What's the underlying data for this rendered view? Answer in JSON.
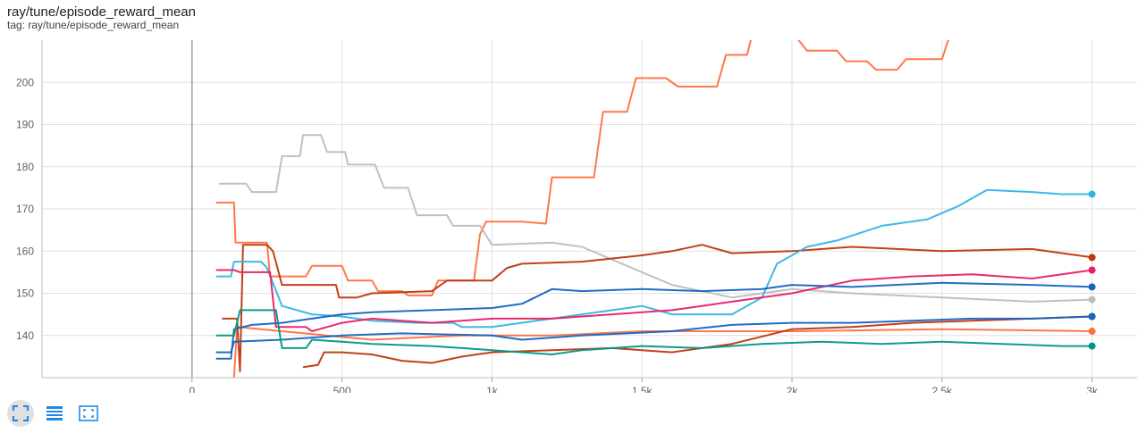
{
  "header": {
    "title": "ray/tune/episode_reward_mean",
    "subtitle": "tag: ray/tune/episode_reward_mean"
  },
  "toolbar": {
    "buttons": [
      {
        "icon": "fit-to-data-icon",
        "active": true
      },
      {
        "icon": "log-scale-toggle-icon",
        "active": false
      },
      {
        "icon": "expand-icon",
        "active": false
      }
    ]
  },
  "chart_data": {
    "type": "line",
    "title": "ray/tune/episode_reward_mean",
    "xlabel": "",
    "ylabel": "",
    "xlim": [
      -500,
      3150
    ],
    "ylim": [
      130,
      210
    ],
    "x_ticks": [
      0,
      500,
      1000,
      1500,
      2000,
      2500,
      3000
    ],
    "x_tick_labels": [
      "0",
      "500",
      "1k",
      "1.5k",
      "2k",
      "2.5k",
      "3k"
    ],
    "y_ticks": [
      140,
      150,
      160,
      170,
      180,
      190,
      200
    ],
    "y_tick_labels": [
      "140",
      "150",
      "160",
      "170",
      "180",
      "190",
      "200"
    ],
    "grid": true,
    "legend": "none",
    "series": [
      {
        "color": "#ff7043",
        "points": [
          [
            140,
            130
          ],
          [
            150,
            142
          ],
          [
            300,
            141
          ],
          [
            450,
            140
          ],
          [
            600,
            139
          ],
          [
            900,
            140
          ],
          [
            1200,
            140
          ],
          [
            1500,
            141
          ],
          [
            2000,
            141
          ],
          [
            2500,
            141.5
          ],
          [
            3000,
            141
          ]
        ]
      },
      {
        "color": "#ff7043",
        "points": [
          [
            80,
            171.5
          ],
          [
            140,
            171.5
          ],
          [
            145,
            162
          ],
          [
            250,
            162
          ],
          [
            260,
            154
          ],
          [
            380,
            154
          ],
          [
            400,
            156.5
          ],
          [
            500,
            156.5
          ],
          [
            520,
            153
          ],
          [
            600,
            153
          ],
          [
            620,
            150.5
          ],
          [
            700,
            150.5
          ],
          [
            720,
            149.5
          ],
          [
            800,
            149.5
          ],
          [
            820,
            153
          ],
          [
            940,
            153
          ],
          [
            960,
            164
          ],
          [
            980,
            167
          ],
          [
            1100,
            167
          ],
          [
            1180,
            166.5
          ],
          [
            1200,
            177.5
          ],
          [
            1340,
            177.5
          ],
          [
            1370,
            193
          ],
          [
            1450,
            193
          ],
          [
            1480,
            201
          ],
          [
            1580,
            201
          ],
          [
            1620,
            199
          ],
          [
            1750,
            199
          ],
          [
            1780,
            206.5
          ],
          [
            1850,
            206.5
          ],
          [
            1870,
            212
          ],
          [
            2000,
            212
          ],
          [
            2050,
            207.5
          ],
          [
            2150,
            207.5
          ],
          [
            2180,
            205
          ],
          [
            2250,
            205
          ],
          [
            2280,
            203
          ],
          [
            2350,
            203
          ],
          [
            2380,
            205.5
          ],
          [
            2500,
            205.5
          ],
          [
            2530,
            212
          ],
          [
            3000,
            212
          ]
        ]
      },
      {
        "color": "#bdbdbd",
        "points": [
          [
            90,
            176
          ],
          [
            180,
            176
          ],
          [
            200,
            174
          ],
          [
            280,
            174
          ],
          [
            300,
            182.5
          ],
          [
            360,
            182.5
          ],
          [
            370,
            187.5
          ],
          [
            430,
            187.5
          ],
          [
            450,
            183.5
          ],
          [
            510,
            183.5
          ],
          [
            520,
            180.5
          ],
          [
            610,
            180.5
          ],
          [
            640,
            175
          ],
          [
            720,
            175
          ],
          [
            750,
            168.5
          ],
          [
            850,
            168.5
          ],
          [
            870,
            166
          ],
          [
            960,
            166
          ],
          [
            1000,
            161.5
          ],
          [
            1200,
            162
          ],
          [
            1300,
            161
          ],
          [
            1400,
            158
          ],
          [
            1500,
            155
          ],
          [
            1600,
            152
          ],
          [
            1800,
            149
          ],
          [
            2000,
            151
          ],
          [
            2200,
            150
          ],
          [
            2500,
            149
          ],
          [
            2800,
            148
          ],
          [
            3000,
            148.5
          ]
        ]
      },
      {
        "color": "#bf360c",
        "points": [
          [
            100,
            144
          ],
          [
            150,
            144
          ],
          [
            160,
            131.5
          ],
          [
            170,
            161.5
          ],
          [
            250,
            161.5
          ],
          [
            270,
            160
          ],
          [
            300,
            152
          ],
          [
            400,
            152
          ],
          [
            480,
            152
          ],
          [
            490,
            149
          ],
          [
            550,
            149
          ],
          [
            600,
            150
          ],
          [
            800,
            150.5
          ],
          [
            850,
            153
          ],
          [
            1000,
            153
          ],
          [
            1050,
            156
          ],
          [
            1100,
            157
          ],
          [
            1300,
            157.5
          ],
          [
            1500,
            159
          ],
          [
            1600,
            160
          ],
          [
            1700,
            161.5
          ],
          [
            1800,
            159.5
          ],
          [
            2000,
            160
          ],
          [
            2200,
            161
          ],
          [
            2500,
            160
          ],
          [
            2800,
            160.5
          ],
          [
            3000,
            158.5
          ]
        ]
      },
      {
        "color": "#bf360c",
        "points": [
          [
            370,
            132.5
          ],
          [
            420,
            133
          ],
          [
            440,
            136
          ],
          [
            500,
            136
          ],
          [
            600,
            135.5
          ],
          [
            700,
            134
          ],
          [
            800,
            133.5
          ],
          [
            900,
            135
          ],
          [
            1000,
            136
          ],
          [
            1200,
            136.5
          ],
          [
            1400,
            137
          ],
          [
            1600,
            136
          ],
          [
            1700,
            137
          ],
          [
            1800,
            138
          ],
          [
            2000,
            141.5
          ],
          [
            2200,
            142
          ],
          [
            2400,
            143
          ],
          [
            2600,
            143.5
          ],
          [
            2800,
            144
          ],
          [
            3000,
            144.5
          ]
        ]
      },
      {
        "color": "#33b5e5",
        "points": [
          [
            80,
            154
          ],
          [
            130,
            154
          ],
          [
            140,
            157.5
          ],
          [
            230,
            157.5
          ],
          [
            250,
            156
          ],
          [
            300,
            147
          ],
          [
            400,
            145
          ],
          [
            500,
            144.5
          ],
          [
            600,
            143.5
          ],
          [
            750,
            143
          ],
          [
            870,
            143
          ],
          [
            900,
            142
          ],
          [
            1000,
            142
          ],
          [
            1200,
            144
          ],
          [
            1400,
            146
          ],
          [
            1500,
            147
          ],
          [
            1550,
            146
          ],
          [
            1600,
            145
          ],
          [
            1800,
            145
          ],
          [
            1900,
            149
          ],
          [
            1950,
            157
          ],
          [
            2050,
            161
          ],
          [
            2150,
            162.5
          ],
          [
            2300,
            166
          ],
          [
            2450,
            167.5
          ],
          [
            2550,
            170.5
          ],
          [
            2650,
            174.5
          ],
          [
            2800,
            174
          ],
          [
            2900,
            173.5
          ],
          [
            3000,
            173.5
          ]
        ]
      },
      {
        "color": "#e91e63",
        "points": [
          [
            80,
            155.5
          ],
          [
            140,
            155.5
          ],
          [
            160,
            155
          ],
          [
            260,
            155
          ],
          [
            280,
            142
          ],
          [
            380,
            142
          ],
          [
            400,
            141
          ],
          [
            500,
            143
          ],
          [
            600,
            144
          ],
          [
            800,
            143
          ],
          [
            1000,
            144
          ],
          [
            1200,
            144
          ],
          [
            1400,
            145
          ],
          [
            1600,
            146
          ],
          [
            1800,
            148
          ],
          [
            2000,
            150
          ],
          [
            2200,
            153
          ],
          [
            2400,
            154
          ],
          [
            2600,
            154.5
          ],
          [
            2800,
            153.5
          ],
          [
            3000,
            155.5
          ]
        ]
      },
      {
        "color": "#1565c0",
        "points": [
          [
            80,
            134.5
          ],
          [
            130,
            134.5
          ],
          [
            140,
            141.5
          ],
          [
            200,
            142.5
          ],
          [
            300,
            143
          ],
          [
            500,
            145
          ],
          [
            600,
            145.5
          ],
          [
            800,
            146
          ],
          [
            1000,
            146.5
          ],
          [
            1100,
            147.5
          ],
          [
            1200,
            151
          ],
          [
            1300,
            150.5
          ],
          [
            1500,
            151
          ],
          [
            1700,
            150.5
          ],
          [
            1900,
            151
          ],
          [
            2000,
            152
          ],
          [
            2200,
            151.5
          ],
          [
            2500,
            152.5
          ],
          [
            2800,
            152
          ],
          [
            3000,
            151.5
          ]
        ]
      },
      {
        "color": "#1565c0",
        "points": [
          [
            80,
            136
          ],
          [
            130,
            136
          ],
          [
            140,
            138.5
          ],
          [
            300,
            139
          ],
          [
            500,
            140
          ],
          [
            700,
            140.5
          ],
          [
            1000,
            140
          ],
          [
            1100,
            139
          ],
          [
            1300,
            140
          ],
          [
            1600,
            141
          ],
          [
            1800,
            142.5
          ],
          [
            2000,
            143
          ],
          [
            2200,
            143
          ],
          [
            2400,
            143.5
          ],
          [
            2600,
            144
          ],
          [
            2800,
            144
          ],
          [
            3000,
            144.5
          ]
        ]
      },
      {
        "color": "#009688",
        "points": [
          [
            80,
            140
          ],
          [
            140,
            140
          ],
          [
            160,
            146
          ],
          [
            280,
            146
          ],
          [
            300,
            137
          ],
          [
            380,
            137
          ],
          [
            400,
            139
          ],
          [
            500,
            138.5
          ],
          [
            600,
            138
          ],
          [
            800,
            137.5
          ],
          [
            900,
            137
          ],
          [
            1000,
            136.5
          ],
          [
            1100,
            136
          ],
          [
            1200,
            135.5
          ],
          [
            1300,
            136.5
          ],
          [
            1500,
            137.5
          ],
          [
            1700,
            137
          ],
          [
            1900,
            138
          ],
          [
            2100,
            138.5
          ],
          [
            2300,
            138
          ],
          [
            2500,
            138.5
          ],
          [
            2700,
            138
          ],
          [
            2900,
            137.5
          ],
          [
            3000,
            137.5
          ]
        ]
      }
    ]
  }
}
